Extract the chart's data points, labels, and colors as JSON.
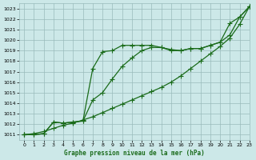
{
  "xlabel": "Graphe pression niveau de la mer (hPa)",
  "xlim": [
    -0.5,
    23
  ],
  "ylim": [
    1010.5,
    1023.5
  ],
  "yticks": [
    1011,
    1012,
    1013,
    1014,
    1015,
    1016,
    1017,
    1018,
    1019,
    1020,
    1021,
    1022,
    1023
  ],
  "xticks": [
    0,
    1,
    2,
    3,
    4,
    5,
    6,
    7,
    8,
    9,
    10,
    11,
    12,
    13,
    14,
    15,
    16,
    17,
    18,
    19,
    20,
    21,
    22,
    23
  ],
  "bg_color": "#cce8e8",
  "grid_color": "#99bbbb",
  "line_color": "#1a6b1a",
  "line1": {
    "x": [
      0,
      1,
      2,
      3,
      4,
      5,
      6,
      7,
      8,
      9,
      10,
      11,
      12,
      13,
      14,
      15,
      16,
      17,
      18,
      19,
      20,
      21,
      22,
      23
    ],
    "y": [
      1011.0,
      1011.1,
      1011.3,
      1011.6,
      1011.9,
      1012.1,
      1012.4,
      1012.7,
      1013.1,
      1013.5,
      1013.9,
      1014.3,
      1014.7,
      1015.1,
      1015.5,
      1016.0,
      1016.6,
      1017.3,
      1018.0,
      1018.7,
      1019.4,
      1020.2,
      1021.5,
      1023.2
    ]
  },
  "line2": {
    "x": [
      0,
      1,
      2,
      3,
      4,
      5,
      6,
      7,
      8,
      9,
      10,
      11,
      12,
      13,
      14,
      15,
      16,
      17,
      18,
      19,
      20,
      21,
      22,
      23
    ],
    "y": [
      1011.0,
      1011.0,
      1011.1,
      1012.2,
      1012.1,
      1012.2,
      1012.3,
      1017.3,
      1018.9,
      1019.0,
      1019.5,
      1019.5,
      1019.5,
      1019.5,
      1019.3,
      1019.1,
      1019.0,
      1019.2,
      1019.2,
      1019.5,
      1019.8,
      1021.6,
      1022.2,
      1023.2
    ]
  },
  "line3": {
    "x": [
      0,
      1,
      2,
      3,
      4,
      5,
      6,
      7,
      8,
      9,
      10,
      11,
      12,
      13,
      14,
      15,
      16,
      17,
      18,
      19,
      20,
      21,
      22,
      23
    ],
    "y": [
      1011.0,
      1011.0,
      1011.1,
      1012.2,
      1012.1,
      1012.2,
      1012.3,
      1014.3,
      1015.0,
      1016.3,
      1017.5,
      1018.3,
      1019.0,
      1019.3,
      1019.3,
      1019.0,
      1019.0,
      1019.2,
      1019.2,
      1019.5,
      1019.8,
      1020.5,
      1022.2,
      1023.2
    ]
  },
  "marker": "+",
  "markersize": 4,
  "markeredgewidth": 0.8,
  "linewidth": 0.9
}
